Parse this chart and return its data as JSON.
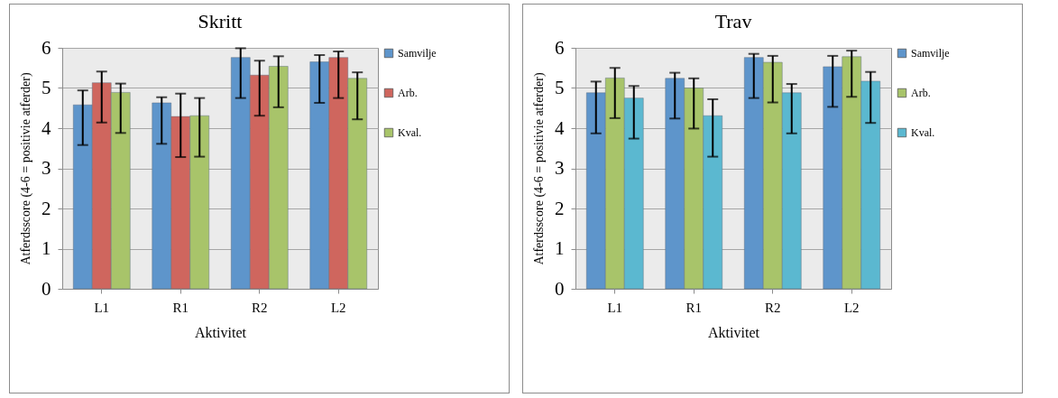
{
  "chart_data": [
    {
      "type": "bar",
      "title": "Skritt",
      "xlabel": "Aktivitet",
      "ylabel": "Atferdsscore (4-6 = positivie atferder)",
      "categories": [
        "L1",
        "R1",
        "R2",
        "L2"
      ],
      "ylim": [
        0,
        6
      ],
      "yticks": [
        0,
        1,
        2,
        3,
        4,
        5,
        6
      ],
      "grid": "y",
      "legend": "right",
      "series": [
        {
          "name": "Samvilje",
          "color": "#5e95cb",
          "values": [
            4.58,
            4.63,
            5.76,
            5.65
          ],
          "errors": [
            [
              3.58,
              4.94
            ],
            [
              3.61,
              4.77
            ],
            [
              4.75,
              5.99
            ],
            [
              4.63,
              5.82
            ]
          ]
        },
        {
          "name": "Arb.",
          "color": "#cf665e",
          "values": [
            5.13,
            4.29,
            5.32,
            5.76
          ],
          "errors": [
            [
              4.14,
              5.41
            ],
            [
              3.28,
              4.86
            ],
            [
              4.31,
              5.68
            ],
            [
              4.75,
              5.91
            ]
          ]
        },
        {
          "name": "Kval.",
          "color": "#a8c46a",
          "values": [
            4.89,
            4.31,
            5.54,
            5.24
          ],
          "errors": [
            [
              3.88,
              5.11
            ],
            [
              3.29,
              4.75
            ],
            [
              4.52,
              5.79
            ],
            [
              4.22,
              5.39
            ]
          ]
        }
      ]
    },
    {
      "type": "bar",
      "title": "Trav",
      "xlabel": "Aktivitet",
      "ylabel": "Atferdsscore (4-6 = positivie atferder)",
      "categories": [
        "L1",
        "R1",
        "R2",
        "L2"
      ],
      "ylim": [
        0,
        6
      ],
      "yticks": [
        0,
        1,
        2,
        3,
        4,
        5,
        6
      ],
      "grid": "y",
      "legend": "right",
      "series": [
        {
          "name": "Samvilje",
          "color": "#5e95cb",
          "values": [
            4.88,
            5.24,
            5.76,
            5.53
          ],
          "errors": [
            [
              3.87,
              5.16
            ],
            [
              4.24,
              5.38
            ],
            [
              4.75,
              5.85
            ],
            [
              4.53,
              5.8
            ]
          ]
        },
        {
          "name": "Arb.",
          "color": "#a8c46a",
          "values": [
            5.25,
            5.0,
            5.64,
            5.78
          ],
          "errors": [
            [
              4.25,
              5.5
            ],
            [
              3.99,
              5.24
            ],
            [
              4.64,
              5.8
            ],
            [
              4.78,
              5.93
            ]
          ]
        },
        {
          "name": "Kval.",
          "color": "#5bb8d0",
          "values": [
            4.75,
            4.31,
            4.88,
            5.17
          ],
          "errors": [
            [
              3.74,
              5.05
            ],
            [
              3.29,
              4.72
            ],
            [
              3.87,
              5.1
            ],
            [
              4.13,
              5.4
            ]
          ]
        }
      ]
    }
  ]
}
